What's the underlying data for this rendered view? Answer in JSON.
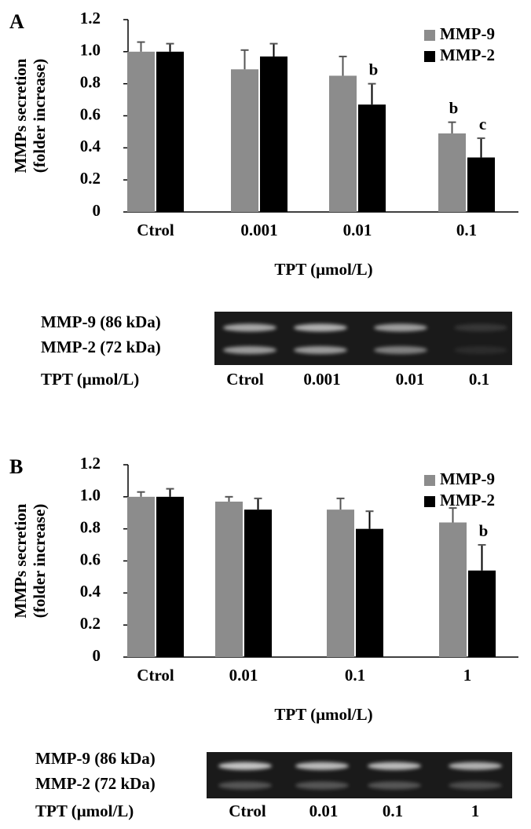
{
  "chart_data": [
    {
      "type": "bar",
      "panel": "A",
      "ylabel": [
        "MMPs secretion",
        "(folder increase)"
      ],
      "xlabel": "TPT (μmol/L)",
      "categories": [
        "Ctrol",
        "0.001",
        "0.01",
        "0.1"
      ],
      "series": [
        {
          "name": "MMP-9",
          "color": "#8c8c8c",
          "values": [
            1.0,
            0.89,
            0.85,
            0.49
          ],
          "errors": [
            0.06,
            0.12,
            0.12,
            0.07
          ],
          "significance": [
            null,
            null,
            null,
            "b"
          ]
        },
        {
          "name": "MMP-2",
          "color": "#000000",
          "values": [
            1.0,
            0.97,
            0.67,
            0.34
          ],
          "errors": [
            0.05,
            0.08,
            0.13,
            0.12
          ],
          "significance": [
            null,
            null,
            "b",
            "c"
          ]
        }
      ],
      "ylim": [
        0,
        1.2
      ],
      "yticks": [
        0,
        0.2,
        0.4,
        0.6,
        0.8,
        {
          "value": 1,
          "label": "1.0"
        },
        1.2
      ],
      "legend": "upper right",
      "gel": {
        "rows": [
          "MMP-9 (86 kDa)",
          "MMP-2 (72 kDa)"
        ],
        "xlabel": "TPT (μmol/L)",
        "lanes": [
          "Ctrol",
          "0.001",
          "0.01",
          "0.1"
        ]
      }
    },
    {
      "type": "bar",
      "panel": "B",
      "ylabel": [
        "MMPs secretion",
        "(folder increase)"
      ],
      "xlabel": "TPT (μmol/L)",
      "categories": [
        "Ctrol",
        "0.01",
        "0.1",
        "1"
      ],
      "series": [
        {
          "name": "MMP-9",
          "color": "#8c8c8c",
          "values": [
            1.0,
            0.97,
            0.92,
            0.84
          ],
          "errors": [
            0.03,
            0.03,
            0.07,
            0.09
          ],
          "significance": [
            null,
            null,
            null,
            null
          ]
        },
        {
          "name": "MMP-2",
          "color": "#000000",
          "values": [
            1.0,
            0.92,
            0.8,
            0.54
          ],
          "errors": [
            0.05,
            0.07,
            0.11,
            0.16
          ],
          "significance": [
            null,
            null,
            null,
            "b"
          ]
        }
      ],
      "ylim": [
        0,
        1.2
      ],
      "yticks": [
        0,
        0.2,
        0.4,
        0.6,
        0.8,
        {
          "value": 1,
          "label": "1.0"
        },
        1.2
      ],
      "legend": "upper right",
      "gel": {
        "rows": [
          "MMP-9 (86 kDa)",
          "MMP-2 (72 kDa)"
        ],
        "xlabel": "TPT (μmol/L)",
        "lanes": [
          "Ctrol",
          "0.01",
          "0.1",
          "1"
        ]
      }
    }
  ]
}
